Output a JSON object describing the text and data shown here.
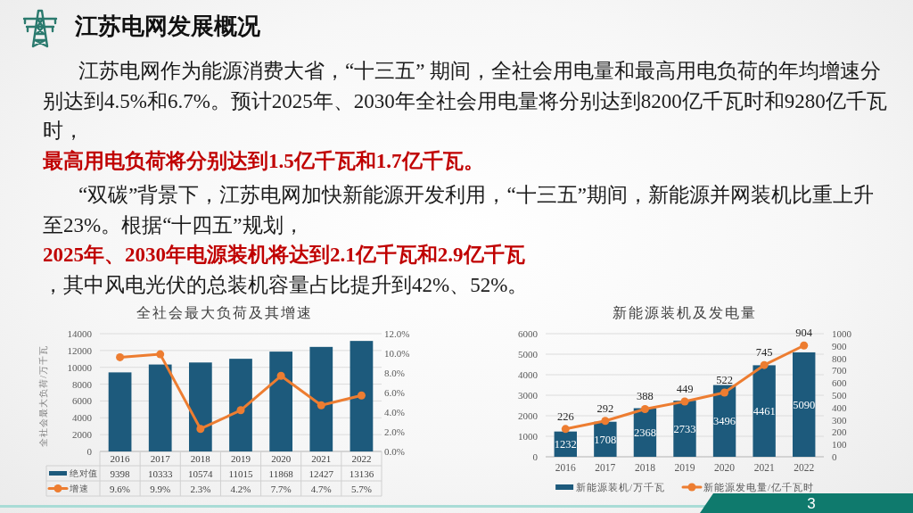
{
  "chart_data": [
    {
      "type": "other",
      "title": "江苏电网发展概况",
      "annotations": [
        "江苏电网作为能源消费大省，“十三五” 期间，全社会用电量和最高用电负荷的年均增速分别达到4.5%和6.7%。预计2025年、2030年全社会用电量将分别达到8200亿千瓦时和9280亿千瓦时，",
        "最高用电负荷将分别达到1.5亿千瓦和1.7亿千瓦。"
      ]
    },
    {
      "type": "other",
      "annotations": [
        "“双碳”背景下，江苏电网加快新能源开发利用，“十三五”期间，新能源并网装机比重上升至23%。根据“十四五”规划，",
        "2025年、2030年电源装机将达到2.1亿千瓦和2.9亿千瓦",
        "，其中风电光伏的总装机容量占比提升到42%、52%。"
      ]
    },
    {
      "type": "bar",
      "title": "全社会最大负荷及其增速",
      "ylabel": "全社会最大负荷/万千瓦",
      "categories": [
        "2016",
        "2017",
        "2018",
        "2019",
        "2020",
        "2021",
        "2022"
      ],
      "series": [
        {
          "name": "绝对值",
          "color": "#1d5a7c",
          "values": [
            9398,
            10333,
            10574,
            11015,
            11868,
            12427,
            13136
          ],
          "value_labels": [
            "9398",
            "10333",
            "10574",
            "11015",
            "11868",
            "12427",
            "13136"
          ]
        },
        {
          "name": "增速",
          "type": "line",
          "axis": "y2",
          "color": "#ed7d31",
          "values": [
            9.6,
            9.9,
            2.3,
            4.2,
            7.7,
            4.7,
            5.7
          ],
          "value_labels": [
            "9.6%",
            "9.9%",
            "2.3%",
            "4.2%",
            "7.7%",
            "4.7%",
            "5.7%"
          ]
        }
      ],
      "ylim": [
        0,
        14000
      ],
      "yticks": [
        0,
        2000,
        4000,
        6000,
        8000,
        10000,
        12000,
        14000
      ],
      "y2lim": [
        0,
        12
      ],
      "y2ticks": [
        {
          "value": 0,
          "label": "0.0%"
        },
        {
          "value": 2,
          "label": "2.0%"
        },
        {
          "value": 4,
          "label": "4.0%"
        },
        {
          "value": 6,
          "label": "6.0%"
        },
        {
          "value": 8,
          "label": "8.0%"
        },
        {
          "value": 10,
          "label": "10.0%"
        },
        {
          "value": 12,
          "label": "12.0%"
        }
      ],
      "grid": "y",
      "legend": "bottom",
      "marker": "circle"
    },
    {
      "type": "bar",
      "title": "新能源装机及发电量",
      "categories": [
        "2016",
        "2017",
        "2018",
        "2019",
        "2020",
        "2021",
        "2022"
      ],
      "series": [
        {
          "name": "新能源装机/万千瓦",
          "color": "#1d5a7c",
          "values": [
            1232,
            1708,
            2368,
            2733,
            3496,
            4461,
            5090
          ]
        },
        {
          "name": "新能源发电量/亿千瓦时",
          "type": "line",
          "axis": "y2",
          "color": "#ed7d31",
          "values": [
            226,
            292,
            388,
            449,
            522,
            745,
            904
          ]
        }
      ],
      "ylim": [
        0,
        6000
      ],
      "yticks": [
        0,
        1000,
        2000,
        3000,
        4000,
        5000,
        6000
      ],
      "y2lim": [
        0,
        1000
      ],
      "y2ticks": [
        0,
        100,
        200,
        300,
        400,
        500,
        600,
        700,
        800,
        900,
        1000
      ],
      "grid": "y",
      "legend": "bottom",
      "marker": "circle",
      "data_labels": true
    },
    {
      "type": "other",
      "annotations": [
        "3"
      ]
    }
  ]
}
